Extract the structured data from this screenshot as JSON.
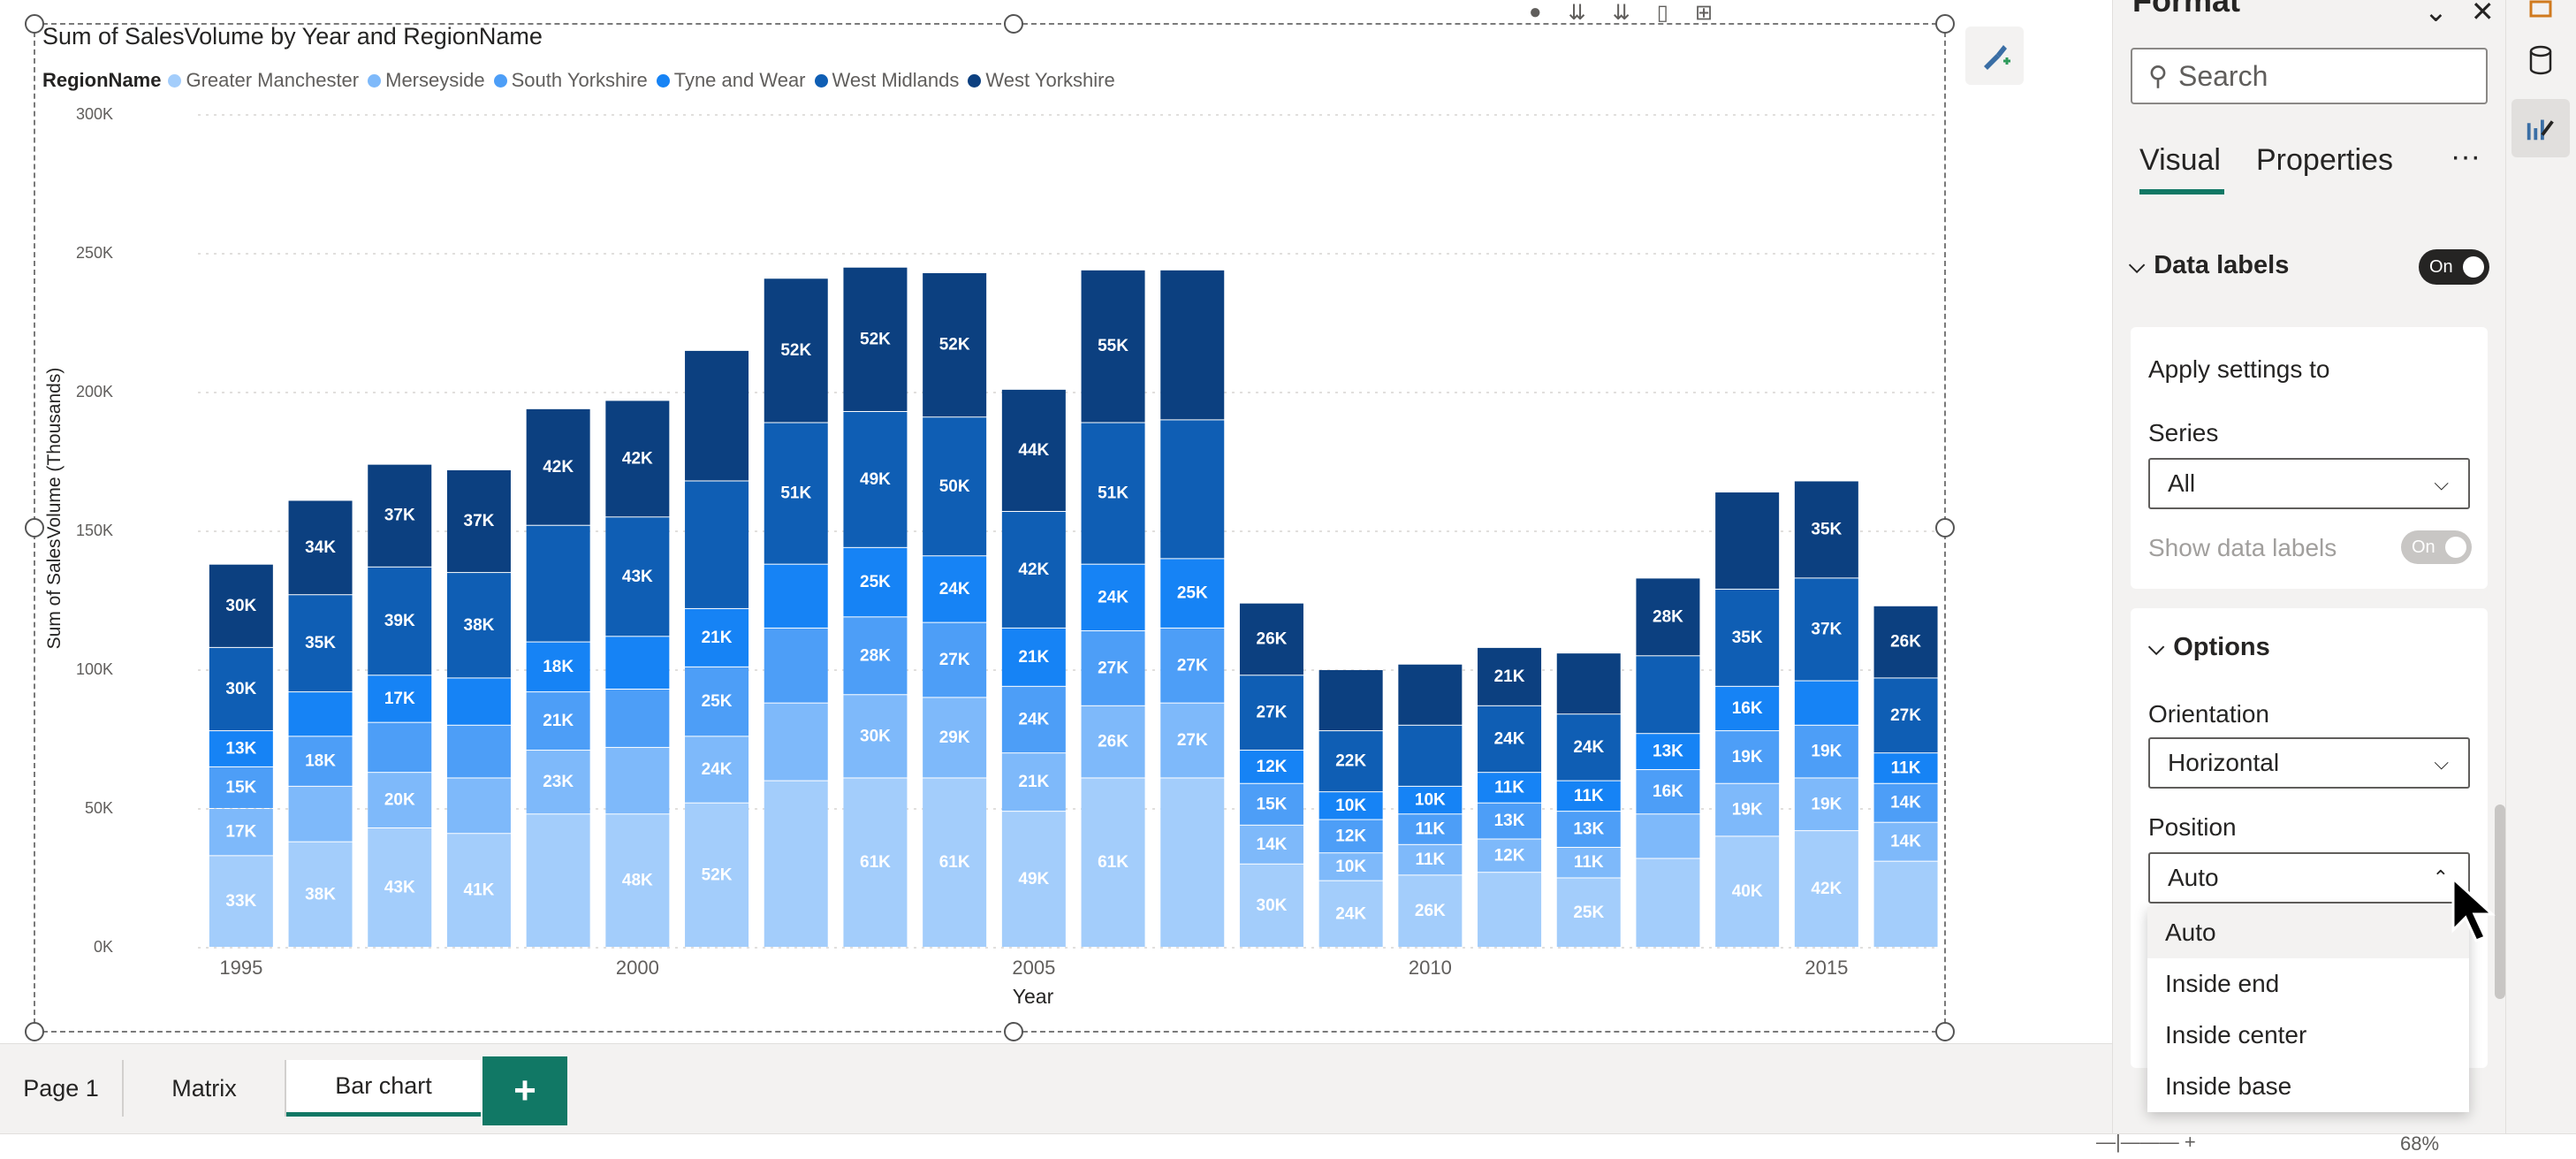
{
  "chart": {
    "title": "Sum of SalesVolume by Year and RegionName",
    "legend_title": "RegionName",
    "y_axis_title": "Sum of SalesVolume (Thousands)",
    "x_axis_title": "Year",
    "y_ticks": [
      "0K",
      "50K",
      "100K",
      "150K",
      "200K",
      "250K",
      "300K"
    ]
  },
  "chart_data": {
    "type": "bar",
    "stacked": true,
    "title": "Sum of SalesVolume by Year and RegionName",
    "xlabel": "Year",
    "ylabel": "Sum of SalesVolume (Thousands)",
    "ylim": [
      0,
      300
    ],
    "grid": true,
    "legend_position": "top-left",
    "categories": [
      "1995",
      "1996",
      "1997",
      "1998",
      "1999",
      "2000",
      "2001",
      "2002",
      "2003",
      "2004",
      "2005",
      "2006",
      "2007",
      "2008",
      "2009",
      "2010",
      "2011",
      "2012",
      "2013",
      "2014",
      "2015",
      "2016"
    ],
    "x_tick_labels": [
      "1995",
      "2000",
      "2005",
      "2010",
      "2015"
    ],
    "series": [
      {
        "name": "Greater Manchester",
        "color": "#a3cdfb",
        "values": [
          33,
          38,
          43,
          41,
          48,
          48,
          52,
          60,
          61,
          61,
          49,
          61,
          61,
          30,
          24,
          26,
          27,
          25,
          32,
          40,
          42,
          31
        ],
        "labels": [
          "33K",
          "38K",
          "43K",
          "41K",
          "",
          "48K",
          "52K",
          "",
          "61K",
          "61K",
          "49K",
          "61K",
          "",
          "30K",
          "24K",
          "26K",
          "",
          "25K",
          "",
          "40K",
          "42K",
          ""
        ]
      },
      {
        "name": "Merseyside",
        "color": "#7eb9fa",
        "values": [
          17,
          20,
          20,
          20,
          23,
          24,
          24,
          28,
          30,
          29,
          21,
          26,
          27,
          14,
          10,
          11,
          12,
          11,
          16,
          19,
          19,
          14
        ],
        "labels": [
          "17K",
          "",
          "20K",
          "",
          "23K",
          "",
          "24K",
          "",
          "30K",
          "29K",
          "21K",
          "26K",
          "27K",
          "14K",
          "10K",
          "11K",
          "12K",
          "11K",
          "",
          "19K",
          "19K",
          "14K"
        ]
      },
      {
        "name": "South Yorkshire",
        "color": "#4d9ef7",
        "values": [
          15,
          18,
          18,
          19,
          21,
          21,
          25,
          27,
          28,
          27,
          24,
          27,
          27,
          15,
          12,
          11,
          13,
          13,
          16,
          19,
          19,
          14
        ],
        "labels": [
          "15K",
          "18K",
          "",
          "",
          "21K",
          "",
          "25K",
          "",
          "28K",
          "27K",
          "24K",
          "27K",
          "27K",
          "15K",
          "12K",
          "11K",
          "13K",
          "13K",
          "16K",
          "19K",
          "19K",
          "14K"
        ]
      },
      {
        "name": "Tyne and Wear",
        "color": "#1683f5",
        "values": [
          13,
          16,
          17,
          17,
          18,
          19,
          21,
          23,
          25,
          24,
          21,
          24,
          25,
          12,
          10,
          10,
          11,
          11,
          13,
          16,
          16,
          11
        ],
        "labels": [
          "13K",
          "",
          "17K",
          "",
          "18K",
          "",
          "21K",
          "",
          "25K",
          "24K",
          "21K",
          "24K",
          "25K",
          "12K",
          "10K",
          "10K",
          "11K",
          "11K",
          "13K",
          "16K",
          "",
          "11K"
        ]
      },
      {
        "name": "West Midlands",
        "color": "#0f5eb4",
        "values": [
          30,
          35,
          39,
          38,
          42,
          43,
          46,
          51,
          49,
          50,
          42,
          51,
          50,
          27,
          22,
          22,
          24,
          24,
          28,
          35,
          37,
          27
        ],
        "labels": [
          "30K",
          "35K",
          "39K",
          "38K",
          "",
          "43K",
          "",
          "51K",
          "49K",
          "50K",
          "42K",
          "51K",
          "",
          "27K",
          "22K",
          "",
          "24K",
          "24K",
          "",
          "35K",
          "37K",
          "27K"
        ]
      },
      {
        "name": "West Yorkshire",
        "color": "#0c4080",
        "values": [
          30,
          34,
          37,
          37,
          42,
          42,
          47,
          52,
          52,
          52,
          44,
          55,
          54,
          26,
          22,
          22,
          21,
          22,
          28,
          35,
          35,
          26
        ],
        "labels": [
          "30K",
          "34K",
          "37K",
          "37K",
          "42K",
          "42K",
          "",
          "52K",
          "52K",
          "52K",
          "44K",
          "55K",
          "",
          "26K",
          "",
          "",
          "21K",
          "",
          "28K",
          "",
          "35K",
          "26K"
        ]
      }
    ]
  },
  "tabs": {
    "page1": "Page 1",
    "matrix": "Matrix",
    "bar_chart": "Bar chart",
    "add": "+"
  },
  "pane": {
    "title": "Format",
    "search_placeholder": "Search",
    "tab_visual": "Visual",
    "tab_properties": "Properties",
    "more": "···",
    "data_labels": {
      "heading": "Data labels",
      "toggle": "On",
      "apply_settings_to": "Apply settings to",
      "series_label": "Series",
      "series_value": "All",
      "show_data_labels": "Show data labels",
      "show_toggle": "On"
    },
    "options": {
      "heading": "Options",
      "orientation_label": "Orientation",
      "orientation_value": "Horizontal",
      "position_label": "Position",
      "position_value": "Auto",
      "position_options": [
        "Auto",
        "Inside end",
        "Inside center",
        "Inside base"
      ]
    }
  },
  "status": {
    "zoom": "68%"
  },
  "icons": {
    "search": "search-icon",
    "format_brush": "format-visual-icon",
    "chevron": "chevron-down-icon",
    "cursor": "mouse-pointer-icon"
  }
}
